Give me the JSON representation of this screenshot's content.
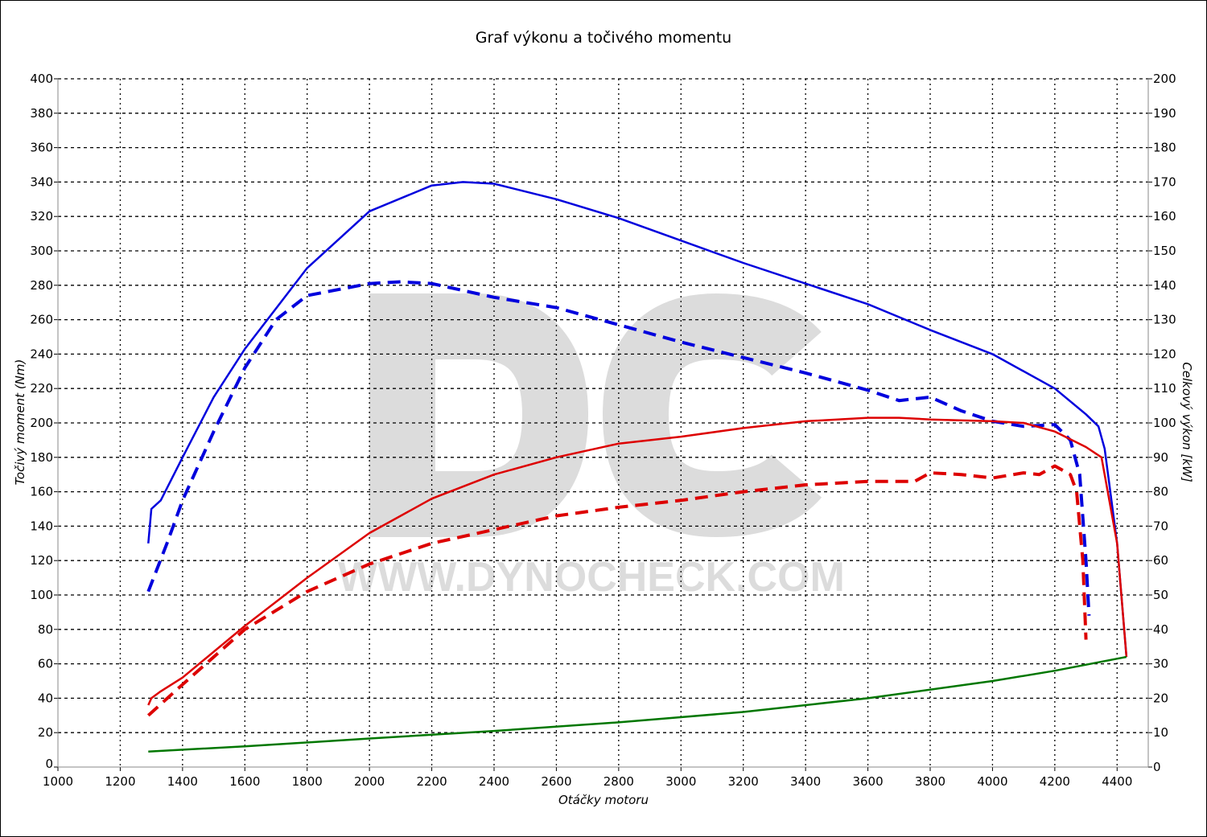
{
  "chart_data": {
    "type": "line",
    "title": "Graf výkonu a točivého momentu",
    "xlabel": "Otáčky motoru",
    "ylabel_left": "Točivý moment (Nm)",
    "ylabel_right": "Celkový výkon [kW]",
    "xlim": [
      1000,
      4500
    ],
    "ylim_left": [
      0,
      400
    ],
    "ylim_right": [
      0,
      200
    ],
    "x_ticks": [
      1000,
      1200,
      1400,
      1600,
      1800,
      2000,
      2200,
      2400,
      2600,
      2800,
      3000,
      3200,
      3400,
      3600,
      3800,
      4000,
      4200,
      4400
    ],
    "y_ticks_left": [
      0,
      20,
      40,
      60,
      80,
      100,
      120,
      140,
      160,
      180,
      200,
      220,
      240,
      260,
      280,
      300,
      320,
      340,
      360,
      380,
      400
    ],
    "y_ticks_right": [
      0,
      10,
      20,
      30,
      40,
      50,
      60,
      70,
      80,
      90,
      100,
      110,
      120,
      130,
      140,
      150,
      160,
      170,
      180,
      190,
      200
    ],
    "grid": true,
    "watermark": [
      "DC",
      "WWW.DYNOCHECK.COM"
    ],
    "series": [
      {
        "axis": "left",
        "color": "#0000dd",
        "style": "solid",
        "x": [
          1290,
          1300,
          1330,
          1400,
          1500,
          1600,
          1800,
          2000,
          2200,
          2300,
          2400,
          2600,
          2800,
          3000,
          3200,
          3400,
          3600,
          3800,
          4000,
          4200,
          4300,
          4340,
          4360,
          4400,
          4430
        ],
        "y": [
          130,
          150,
          155,
          180,
          215,
          243,
          290,
          323,
          338,
          340,
          339,
          330,
          319,
          306,
          293,
          281,
          269,
          254,
          240,
          220,
          205,
          198,
          185,
          130,
          64
        ]
      },
      {
        "axis": "left",
        "color": "#0000dd",
        "style": "dashed",
        "x": [
          1290,
          1350,
          1400,
          1500,
          1600,
          1700,
          1800,
          2000,
          2100,
          2200,
          2400,
          2600,
          2800,
          3000,
          3200,
          3400,
          3600,
          3700,
          3800,
          3900,
          4000,
          4100,
          4200,
          4250,
          4280,
          4300,
          4310
        ],
        "y": [
          102,
          130,
          155,
          195,
          232,
          260,
          274,
          281,
          282,
          281,
          273,
          267,
          257,
          247,
          238,
          229,
          219,
          213,
          215,
          207,
          201,
          198,
          199,
          190,
          170,
          120,
          88
        ]
      },
      {
        "axis": "right",
        "color": "#dd0000",
        "style": "solid",
        "x": [
          1290,
          1300,
          1330,
          1400,
          1600,
          1800,
          2000,
          2200,
          2400,
          2600,
          2800,
          3000,
          3200,
          3400,
          3600,
          3700,
          3800,
          4000,
          4100,
          4200,
          4300,
          4350,
          4400,
          4430
        ],
        "y": [
          18,
          20,
          22,
          26,
          41,
          55,
          68,
          78,
          85,
          90,
          94,
          96,
          98.5,
          100.5,
          101.5,
          101.5,
          101,
          100.5,
          100,
          97.5,
          93,
          90,
          65,
          32
        ]
      },
      {
        "axis": "right",
        "color": "#dd0000",
        "style": "dashed",
        "x": [
          1290,
          1400,
          1600,
          1800,
          2000,
          2200,
          2400,
          2600,
          2800,
          3000,
          3200,
          3400,
          3600,
          3750,
          3800,
          3900,
          4000,
          4100,
          4150,
          4200,
          4250,
          4270,
          4290,
          4300
        ],
        "y": [
          15,
          24,
          40,
          51,
          59,
          65,
          69,
          73,
          75.5,
          77.5,
          80,
          82,
          83,
          83,
          85.5,
          85,
          84,
          85.5,
          85,
          87.5,
          85,
          80,
          60,
          37
        ]
      },
      {
        "axis": "right",
        "color": "#007700",
        "style": "solid",
        "x": [
          1290,
          1600,
          2000,
          2400,
          2800,
          3200,
          3600,
          4000,
          4200,
          4430
        ],
        "y": [
          4.5,
          6,
          8.3,
          10.5,
          13,
          16,
          20,
          25,
          28,
          32
        ]
      }
    ]
  }
}
